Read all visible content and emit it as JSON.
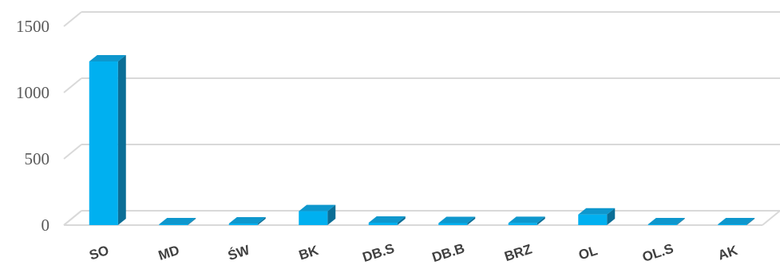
{
  "chart_data": {
    "type": "bar",
    "title": "",
    "xlabel": "",
    "ylabel": "",
    "ylim": [
      0,
      1500
    ],
    "yticks": [
      0,
      500,
      1000,
      1500
    ],
    "grid": true,
    "legend": "none",
    "style": "3d-column",
    "categories": [
      "SO",
      "MD",
      "ŚW",
      "BK",
      "DB.S",
      "DB.B",
      "BRZ",
      "OL",
      "OL.S",
      "AK"
    ],
    "values": [
      1235,
      5,
      12,
      105,
      18,
      15,
      16,
      80,
      6,
      5
    ],
    "colors": {
      "front": "#00B0F0",
      "top": "#0E97CD",
      "side": "#0B6E96",
      "grid": "#D9D9D9",
      "floor": "#D9D9D9"
    }
  }
}
